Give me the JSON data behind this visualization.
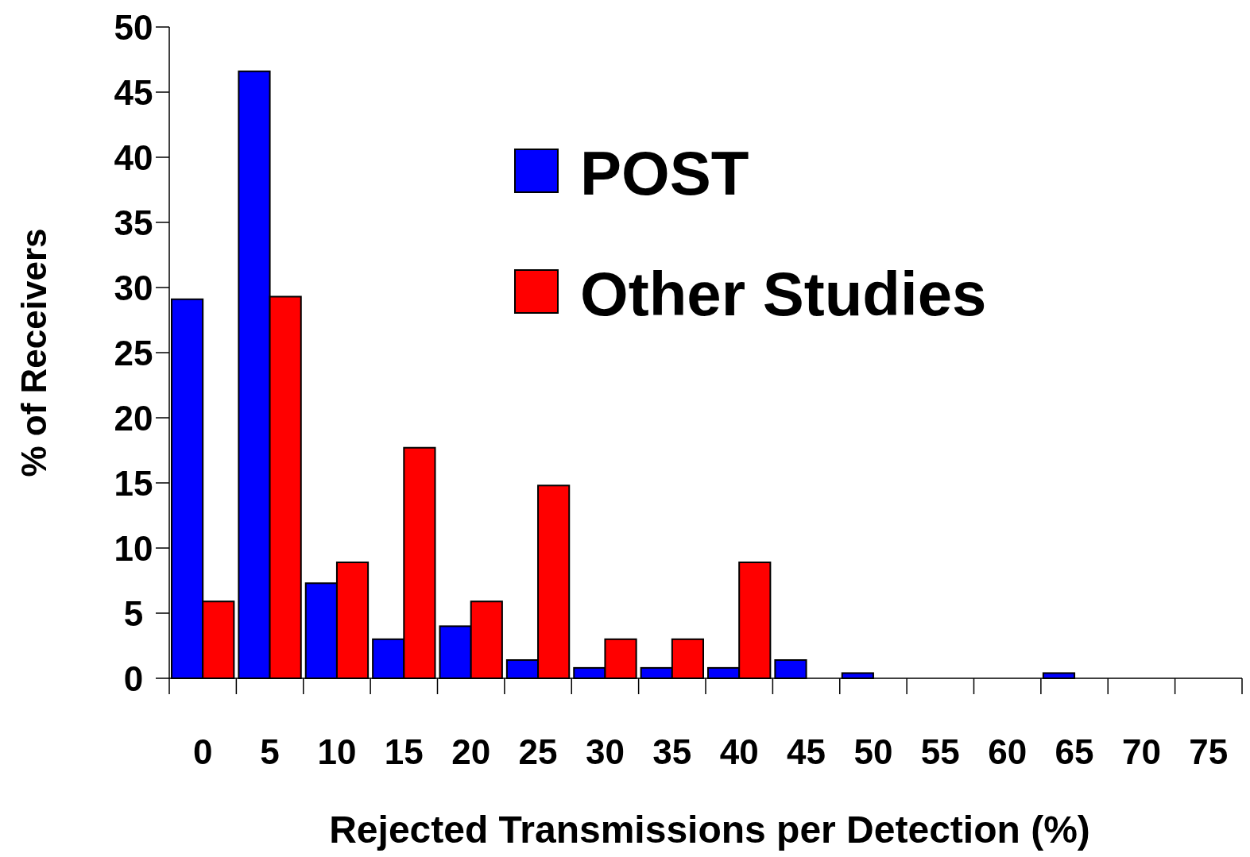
{
  "chart_data": {
    "type": "bar",
    "xlabel": "Rejected Transmissions per Detection (%)",
    "ylabel": "% of Receivers",
    "categories": [
      "0",
      "5",
      "10",
      "15",
      "20",
      "25",
      "30",
      "35",
      "40",
      "45",
      "50",
      "55",
      "60",
      "65",
      "70",
      "75"
    ],
    "series": [
      {
        "name": "POST",
        "color": "#0000ff",
        "values": [
          29.1,
          46.6,
          7.3,
          3.0,
          4.0,
          1.4,
          0.8,
          0.8,
          0.8,
          1.4,
          0.4,
          0,
          0,
          0.4,
          0,
          0
        ]
      },
      {
        "name": "Other Studies",
        "color": "#ff0000",
        "values": [
          5.9,
          29.3,
          8.9,
          17.7,
          5.9,
          14.8,
          3.0,
          3.0,
          8.9,
          0,
          0,
          0,
          0,
          0,
          0,
          0
        ]
      }
    ],
    "ylim": [
      0,
      50
    ],
    "yticks": [
      0,
      5,
      10,
      15,
      20,
      25,
      30,
      35,
      40,
      45,
      50
    ],
    "grid": false,
    "legend": "top right"
  }
}
